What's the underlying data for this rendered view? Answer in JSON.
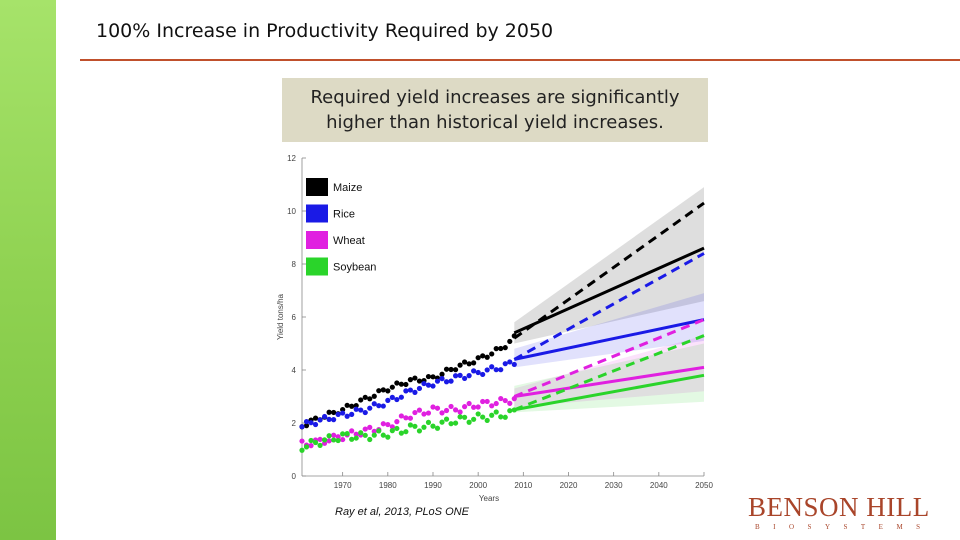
{
  "slide": {
    "title": "100% Increase in Productivity Required by 2050",
    "callout": "Required yield increases are significantly higher than historical yield increases.",
    "citation": "Ray et al, 2013, PLoS ONE",
    "logo_main": "BENSON HILL",
    "logo_sub": "BIOSYSTEMS",
    "accent_color": "#c0502c",
    "sidebar_color": "#8ed150"
  },
  "chart_data": {
    "type": "line",
    "title": "",
    "xlabel": "Years",
    "ylabel": "Yield tons/ha",
    "xlim": [
      1961,
      2050
    ],
    "ylim": [
      0,
      12
    ],
    "xticks": [
      1970,
      1980,
      1990,
      2000,
      2010,
      2020,
      2030,
      2040,
      2050
    ],
    "yticks": [
      0,
      2,
      4,
      6,
      8,
      10,
      12
    ],
    "legend_position": "top-left",
    "series": [
      {
        "name": "Maize",
        "color": "#000000",
        "historical": [
          [
            1961,
            1.9
          ],
          [
            1965,
            2.2
          ],
          [
            1970,
            2.5
          ],
          [
            1975,
            2.9
          ],
          [
            1980,
            3.3
          ],
          [
            1985,
            3.6
          ],
          [
            1990,
            3.7
          ],
          [
            1995,
            4.1
          ],
          [
            2000,
            4.4
          ],
          [
            2005,
            4.8
          ],
          [
            2008,
            5.2
          ]
        ],
        "projection": [
          [
            2008,
            5.4
          ],
          [
            2050,
            8.6
          ]
        ],
        "required": [
          [
            2008,
            5.2
          ],
          [
            2050,
            10.3
          ]
        ],
        "band": [
          [
            2008,
            5.8,
            5.0
          ],
          [
            2050,
            10.9,
            6.6
          ]
        ]
      },
      {
        "name": "Rice",
        "color": "#1a1ae6",
        "historical": [
          [
            1961,
            1.9
          ],
          [
            1965,
            2.1
          ],
          [
            1970,
            2.3
          ],
          [
            1975,
            2.5
          ],
          [
            1980,
            2.8
          ],
          [
            1985,
            3.2
          ],
          [
            1990,
            3.5
          ],
          [
            1995,
            3.7
          ],
          [
            2000,
            3.9
          ],
          [
            2005,
            4.1
          ],
          [
            2008,
            4.3
          ]
        ],
        "projection": [
          [
            2008,
            4.4
          ],
          [
            2050,
            5.9
          ]
        ],
        "required": [
          [
            2008,
            4.4
          ],
          [
            2050,
            8.4
          ]
        ],
        "band": [
          [
            2008,
            4.8,
            4.1
          ],
          [
            2050,
            6.9,
            5.1
          ]
        ]
      },
      {
        "name": "Wheat",
        "color": "#e020e0",
        "historical": [
          [
            1961,
            1.2
          ],
          [
            1965,
            1.3
          ],
          [
            1970,
            1.5
          ],
          [
            1975,
            1.7
          ],
          [
            1980,
            1.9
          ],
          [
            1985,
            2.3
          ],
          [
            1990,
            2.5
          ],
          [
            1995,
            2.5
          ],
          [
            2000,
            2.7
          ],
          [
            2005,
            2.8
          ],
          [
            2008,
            2.9
          ]
        ],
        "projection": [
          [
            2008,
            3.0
          ],
          [
            2050,
            4.1
          ]
        ],
        "required": [
          [
            2008,
            3.0
          ],
          [
            2050,
            5.9
          ]
        ],
        "band": [
          [
            2008,
            3.3,
            2.6
          ],
          [
            2050,
            5.3,
            3.2
          ]
        ]
      },
      {
        "name": "Soybean",
        "color": "#2ad42a",
        "historical": [
          [
            1961,
            1.1
          ],
          [
            1965,
            1.3
          ],
          [
            1970,
            1.5
          ],
          [
            1975,
            1.5
          ],
          [
            1980,
            1.6
          ],
          [
            1985,
            1.8
          ],
          [
            1990,
            1.9
          ],
          [
            1995,
            2.1
          ],
          [
            2000,
            2.2
          ],
          [
            2005,
            2.3
          ],
          [
            2008,
            2.4
          ]
        ],
        "projection": [
          [
            2008,
            2.5
          ],
          [
            2050,
            3.8
          ]
        ],
        "required": [
          [
            2008,
            2.5
          ],
          [
            2050,
            5.3
          ]
        ],
        "band": [
          [
            2008,
            3.4,
            2.4
          ],
          [
            2050,
            5.0,
            2.8
          ]
        ]
      }
    ]
  }
}
